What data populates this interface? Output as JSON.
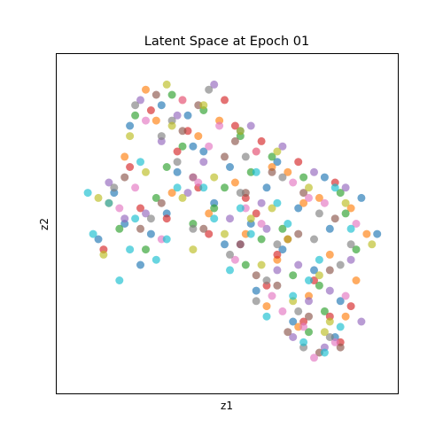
{
  "chart_data": {
    "type": "scatter",
    "title": "Latent Space at Epoch 01",
    "xlabel": "z1",
    "ylabel": "z2",
    "xlim": [
      -3.2,
      3.3
    ],
    "ylim": [
      -3.4,
      3.2
    ],
    "grid": false,
    "ticks_visible": false,
    "marker_alpha": 0.65,
    "palette": [
      "#1f77b4",
      "#ff7f0e",
      "#2ca02c",
      "#d62728",
      "#9467bd",
      "#8c564b",
      "#e377c2",
      "#7f7f7f",
      "#bcbd22",
      "#17becf"
    ],
    "series": [
      {
        "x": [
          -1.8,
          -1.2,
          -0.6,
          0.1,
          0.8,
          1.4,
          2.0,
          2.6,
          -2.1,
          -1.4,
          -0.9,
          -0.2,
          0.5,
          1.1,
          1.7,
          2.2,
          -1.6,
          -0.7,
          0.3,
          1.0,
          1.9,
          -2.4,
          -1.9,
          -1.1,
          0.0,
          0.6,
          1.3,
          2.1,
          2.9,
          -0.4
        ],
        "y": [
          1.8,
          2.2,
          1.4,
          1.0,
          0.6,
          0.2,
          -0.2,
          0.4,
          0.5,
          -0.3,
          0.9,
          0.3,
          -0.1,
          -0.6,
          -1.0,
          -1.6,
          -0.9,
          2.0,
          1.7,
          1.1,
          0.8,
          -0.4,
          -0.1,
          0.1,
          -0.5,
          -1.4,
          -2.0,
          -2.3,
          -0.3,
          1.3
        ]
      },
      {
        "x": [
          -1.5,
          -0.8,
          -0.1,
          0.6,
          1.2,
          1.8,
          2.4,
          2.7,
          -1.9,
          -1.0,
          -0.3,
          0.4,
          1.0,
          1.6,
          2.3,
          -2.2,
          -0.5,
          0.2,
          0.9,
          1.5,
          2.0,
          -1.3,
          -0.6,
          0.8,
          1.4,
          2.5
        ],
        "y": [
          2.5,
          2.3,
          1.9,
          1.3,
          0.9,
          0.4,
          0.2,
          -0.3,
          1.2,
          0.5,
          0.1,
          -0.3,
          -0.8,
          -1.5,
          -1.9,
          0.3,
          1.6,
          0.7,
          1.0,
          0.3,
          -0.7,
          1.9,
          0.8,
          -1.7,
          -2.1,
          -1.2
        ]
      },
      {
        "x": [
          -1.7,
          -1.0,
          -0.4,
          0.3,
          0.9,
          1.5,
          2.2,
          -2.0,
          -1.3,
          -0.6,
          0.0,
          0.7,
          1.3,
          1.9,
          2.5,
          -1.1,
          -0.2,
          0.5,
          1.1,
          1.8,
          -1.5,
          -0.8,
          0.4,
          1.6,
          2.3
        ],
        "y": [
          2.0,
          2.4,
          2.1,
          1.6,
          1.2,
          0.8,
          0.5,
          -0.2,
          0.4,
          -0.1,
          0.6,
          -0.4,
          -1.1,
          -1.8,
          -0.6,
          1.0,
          0.2,
          0.9,
          -0.2,
          -1.3,
          -0.6,
          1.4,
          -0.9,
          -2.2,
          0.1
        ]
      },
      {
        "x": [
          -1.4,
          -0.7,
          0.0,
          0.7,
          1.4,
          2.1,
          -1.8,
          -1.1,
          -0.3,
          0.4,
          1.0,
          1.7,
          2.4,
          -2.3,
          -0.9,
          0.2,
          0.8,
          1.5,
          2.2,
          -1.6,
          -0.5,
          0.6,
          1.2,
          2.0
        ],
        "y": [
          2.1,
          1.7,
          2.3,
          1.5,
          1.1,
          0.7,
          1.0,
          0.0,
          -0.3,
          0.4,
          -0.7,
          -1.2,
          -1.7,
          -0.6,
          1.3,
          1.8,
          -1.3,
          -2.0,
          -2.4,
          0.2,
          0.6,
          0.1,
          -0.4,
          -1.9
        ]
      },
      {
        "x": [
          -1.6,
          -0.9,
          -0.2,
          0.5,
          1.1,
          1.7,
          2.3,
          -2.2,
          -1.5,
          -0.7,
          0.1,
          0.8,
          1.4,
          2.0,
          2.6,
          -1.2,
          -0.4,
          0.3,
          1.0,
          1.6,
          -1.9,
          -0.6,
          0.7,
          1.3,
          1.9,
          2.4
        ],
        "y": [
          2.3,
          2.0,
          2.6,
          1.8,
          1.4,
          0.9,
          0.6,
          0.7,
          0.1,
          0.5,
          0.0,
          -0.2,
          -0.9,
          -1.4,
          -2.0,
          1.5,
          1.1,
          -0.5,
          -1.0,
          -1.6,
          0.0,
          0.8,
          0.3,
          -2.3,
          -2.5,
          -0.8
        ]
      },
      {
        "x": [
          -1.3,
          -0.5,
          0.2,
          0.9,
          1.5,
          2.1,
          -1.9,
          -1.2,
          -0.4,
          0.3,
          1.0,
          1.6,
          2.2,
          -0.8,
          0.0,
          0.6,
          1.2,
          1.8,
          -1.6,
          0.4,
          1.4,
          2.0
        ],
        "y": [
          2.4,
          2.2,
          1.5,
          0.9,
          0.5,
          0.0,
          0.8,
          0.3,
          -0.2,
          -0.5,
          -1.3,
          -1.9,
          -2.5,
          1.7,
          1.2,
          -1.1,
          -2.2,
          -2.6,
          -0.2,
          0.5,
          -0.3,
          -1.0
        ]
      },
      {
        "x": [
          -1.5,
          -0.8,
          -0.1,
          0.6,
          1.3,
          1.9,
          2.5,
          -2.0,
          -1.2,
          -0.5,
          0.2,
          0.9,
          1.5,
          2.1,
          -0.3,
          0.4,
          1.1,
          1.7,
          -1.7,
          0.7,
          1.6,
          2.3
        ],
        "y": [
          1.9,
          2.3,
          1.8,
          1.3,
          0.7,
          0.3,
          -0.1,
          0.2,
          -0.4,
          0.7,
          -0.8,
          -1.5,
          -2.1,
          -2.4,
          1.4,
          0.2,
          -1.8,
          -2.7,
          0.6,
          -0.1,
          0.4,
          -1.5
        ]
      },
      {
        "x": [
          -1.7,
          -1.0,
          -0.3,
          0.4,
          1.1,
          1.8,
          2.4,
          -2.1,
          -1.4,
          -0.6,
          0.1,
          0.8,
          1.4,
          2.0,
          -0.9,
          0.3,
          1.0,
          1.5,
          2.2,
          -1.2,
          0.6,
          1.7
        ],
        "y": [
          2.2,
          1.9,
          2.5,
          1.2,
          0.8,
          0.1,
          -0.5,
          0.6,
          0.0,
          -0.2,
          -0.7,
          -1.2,
          -1.8,
          -2.3,
          1.1,
          0.5,
          -0.5,
          -2.5,
          -0.9,
          1.6,
          -1.6,
          -0.4
        ]
      },
      {
        "x": [
          -1.8,
          -1.1,
          -0.4,
          0.3,
          1.0,
          1.6,
          2.3,
          2.8,
          -2.3,
          -1.5,
          -0.8,
          0.0,
          0.7,
          1.3,
          1.9,
          -1.0,
          -0.2,
          0.5,
          1.2,
          1.8,
          -2.4,
          -0.6,
          0.9,
          2.0
        ],
        "y": [
          1.6,
          2.6,
          2.2,
          1.7,
          1.3,
          0.6,
          0.3,
          -0.5,
          -0.7,
          0.9,
          0.4,
          -0.3,
          -0.9,
          -1.6,
          -2.2,
          1.8,
          0.8,
          0.0,
          -0.4,
          -1.1,
          0.4,
          -0.6,
          0.2,
          -2.0
        ]
      },
      {
        "x": [
          -2.2,
          -1.6,
          -0.9,
          -0.2,
          0.5,
          1.2,
          1.8,
          2.4,
          -2.5,
          -1.8,
          -1.1,
          -0.4,
          0.3,
          1.0,
          1.6,
          2.2,
          -2.0,
          -1.3,
          0.1,
          0.8,
          1.5,
          2.1,
          -2.6,
          -1.7,
          0.6,
          1.3,
          1.9
        ],
        "y": [
          0.3,
          1.1,
          0.6,
          0.0,
          -0.3,
          -0.1,
          -0.8,
          -0.2,
          -0.3,
          -0.6,
          -0.4,
          0.6,
          0.2,
          0.3,
          -1.2,
          -2.1,
          -1.2,
          -0.8,
          -1.0,
          -1.9,
          -2.4,
          0.6,
          0.5,
          0.0,
          0.9,
          -1.5,
          -2.6
        ]
      }
    ]
  }
}
